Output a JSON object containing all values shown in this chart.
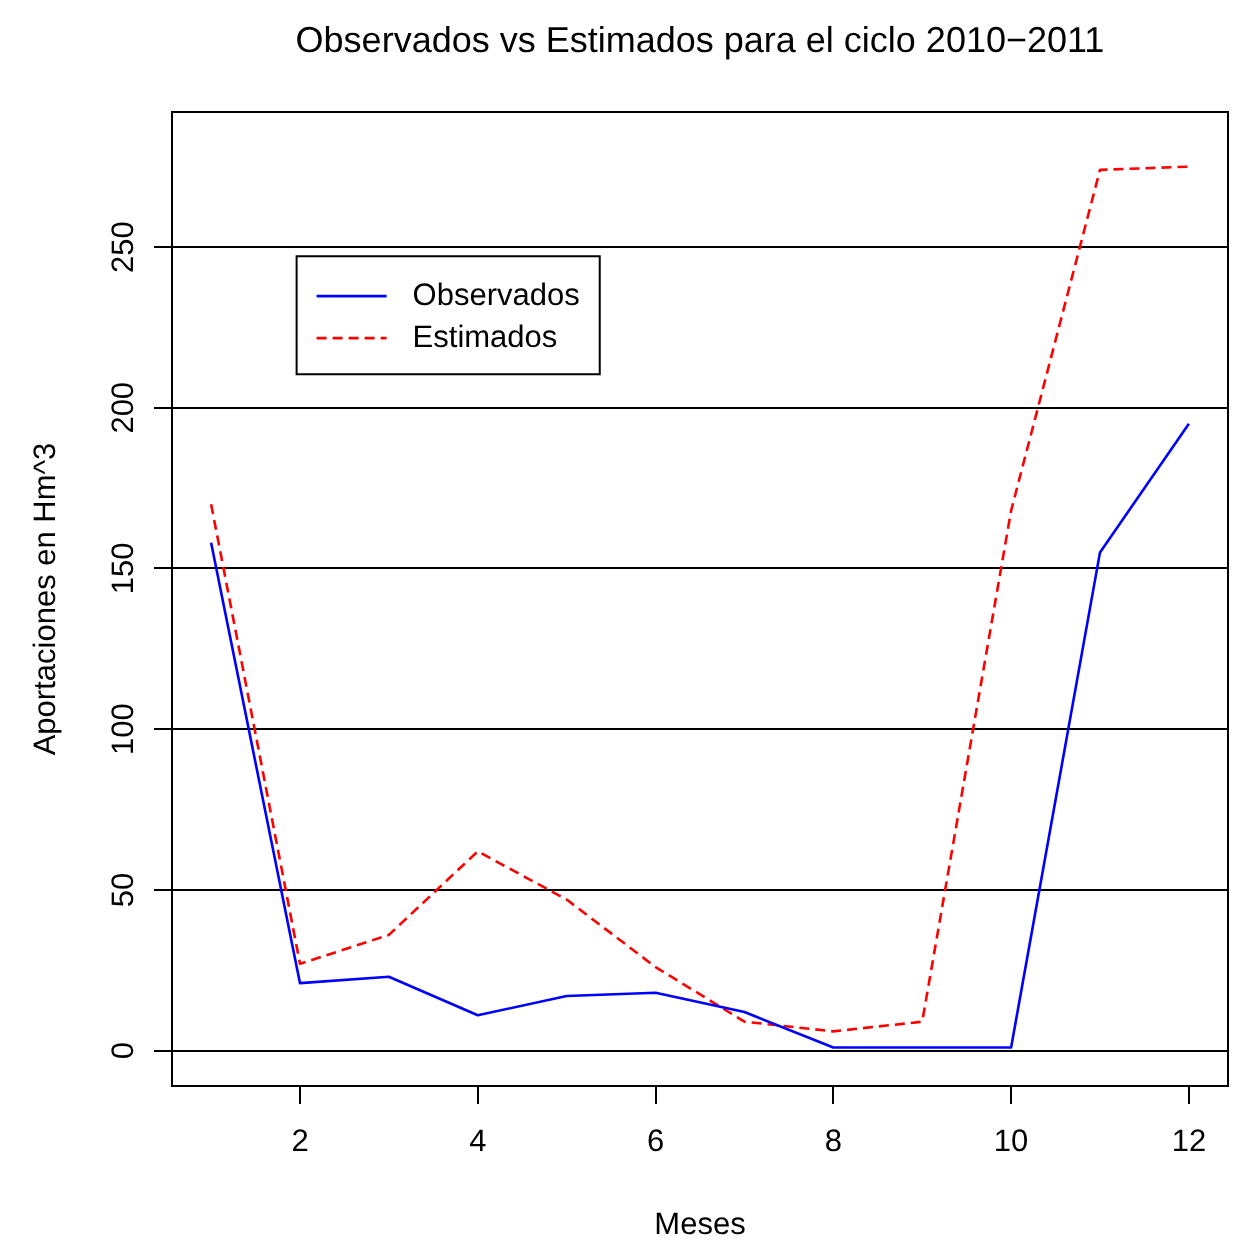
{
  "chart_data": {
    "type": "line",
    "title": "Observados vs Estimados para el ciclo 2010−2011",
    "xlabel": "Meses",
    "ylabel": "Aportaciones en Hm^3",
    "x": [
      1,
      2,
      3,
      4,
      5,
      6,
      7,
      8,
      9,
      10,
      11,
      12
    ],
    "series": [
      {
        "name": "Observados",
        "color": "#0000ff",
        "line_style": "solid",
        "values": [
          158,
          21,
          23,
          11,
          17,
          18,
          12,
          1,
          1,
          1,
          155,
          195
        ]
      },
      {
        "name": "Estimados",
        "color": "#ff0000",
        "line_style": "dashed",
        "values": [
          170,
          27,
          36,
          62,
          47,
          26,
          9,
          6,
          9,
          168,
          274,
          275
        ]
      }
    ],
    "xlim": [
      0.56,
      12.44
    ],
    "xticks": [
      2,
      4,
      6,
      8,
      10,
      12
    ],
    "ylim": [
      -11,
      292
    ],
    "yticks": [
      0,
      50,
      100,
      150,
      200,
      250
    ],
    "grid": "y",
    "legend": "top left"
  }
}
